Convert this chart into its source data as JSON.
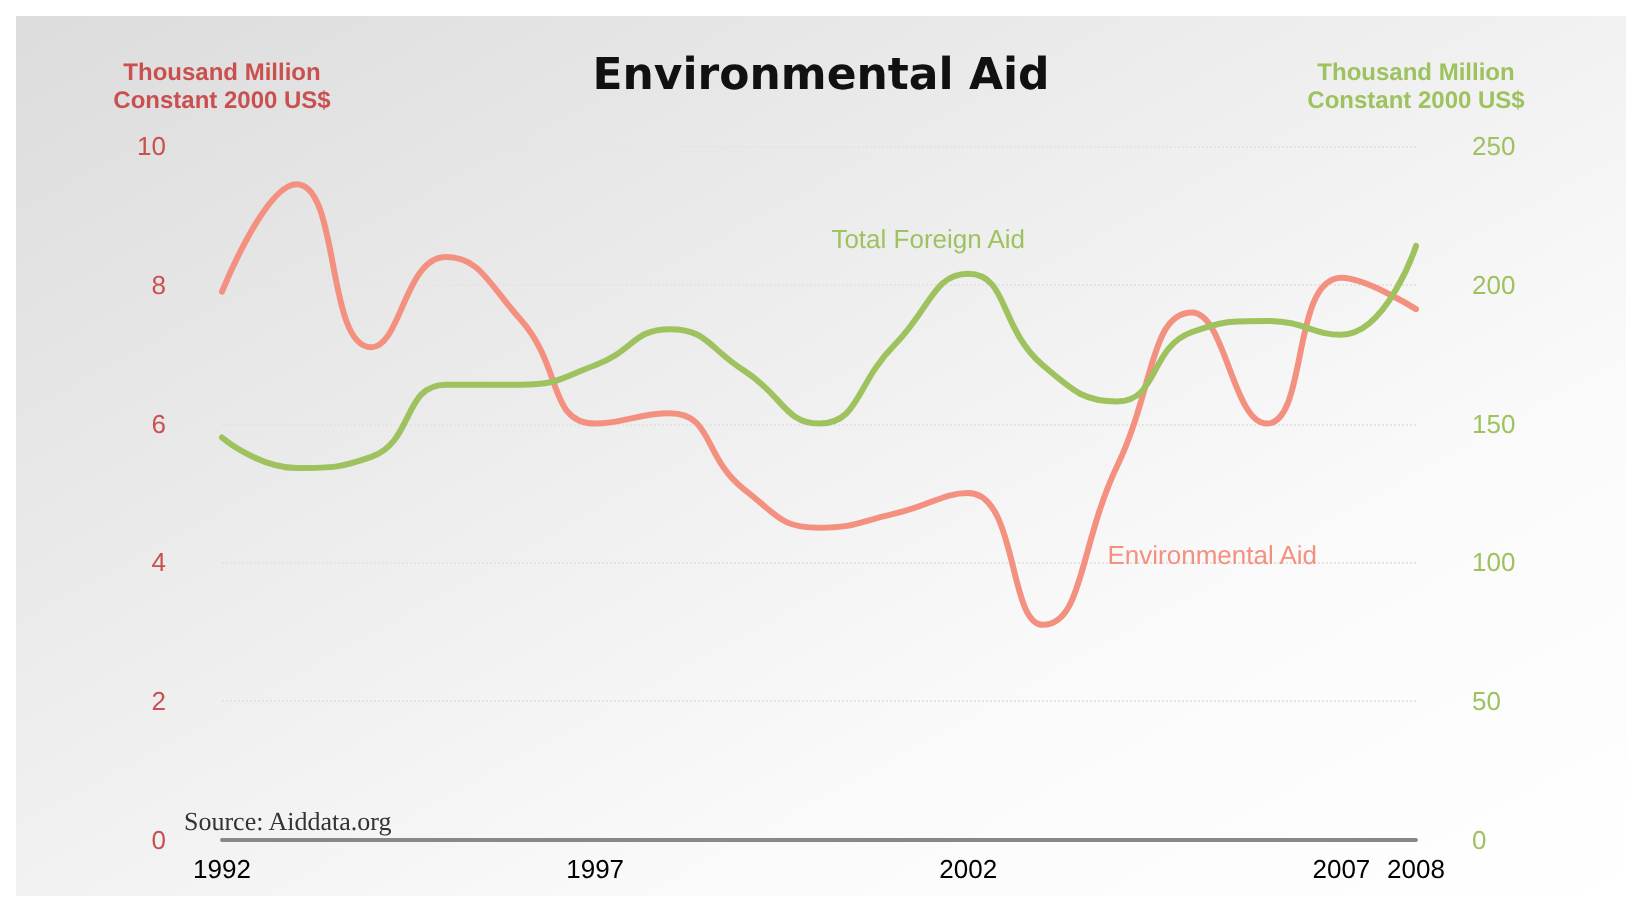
{
  "chart_data": {
    "type": "line",
    "title": "Environmental Aid",
    "ylabel": "Thousand Million\nConstant 2000 US$",
    "y2label": "Thousand Million\nConstant 2000 US$",
    "x": [
      1992,
      1993,
      1994,
      1995,
      1996,
      1997,
      1998,
      1999,
      2000,
      2001,
      2002,
      2003,
      2004,
      2005,
      2006,
      2007,
      2008
    ],
    "series": [
      {
        "name": "Environmental Aid",
        "color": "#f4907f",
        "values": [
          7.9,
          9.45,
          7.1,
          8.4,
          7.5,
          6.0,
          6.15,
          5.05,
          4.5,
          4.7,
          5.0,
          3.1,
          5.4,
          7.6,
          6.0,
          8.1,
          7.65
        ]
      },
      {
        "name": "Total Foreign Aid",
        "color": "#9dc25e",
        "axis": "y2",
        "values": [
          145,
          134,
          138,
          164,
          164,
          171,
          184,
          169,
          150,
          178,
          204,
          171,
          158,
          183,
          187,
          182,
          214
        ]
      }
    ],
    "xlim": [
      1992,
      2008
    ],
    "xticks": [
      1992,
      1997,
      2002,
      2007,
      2008
    ],
    "ylim": [
      0,
      10
    ],
    "yticks": [
      0,
      2,
      4,
      6,
      8,
      10
    ],
    "y2lim": [
      0,
      250
    ],
    "y2ticks": [
      0,
      50,
      100,
      150,
      200,
      250
    ],
    "grid": "y",
    "legend": false,
    "marker": "none",
    "line_style": "solid",
    "annotations": [
      "Source: Aiddata.org"
    ]
  }
}
